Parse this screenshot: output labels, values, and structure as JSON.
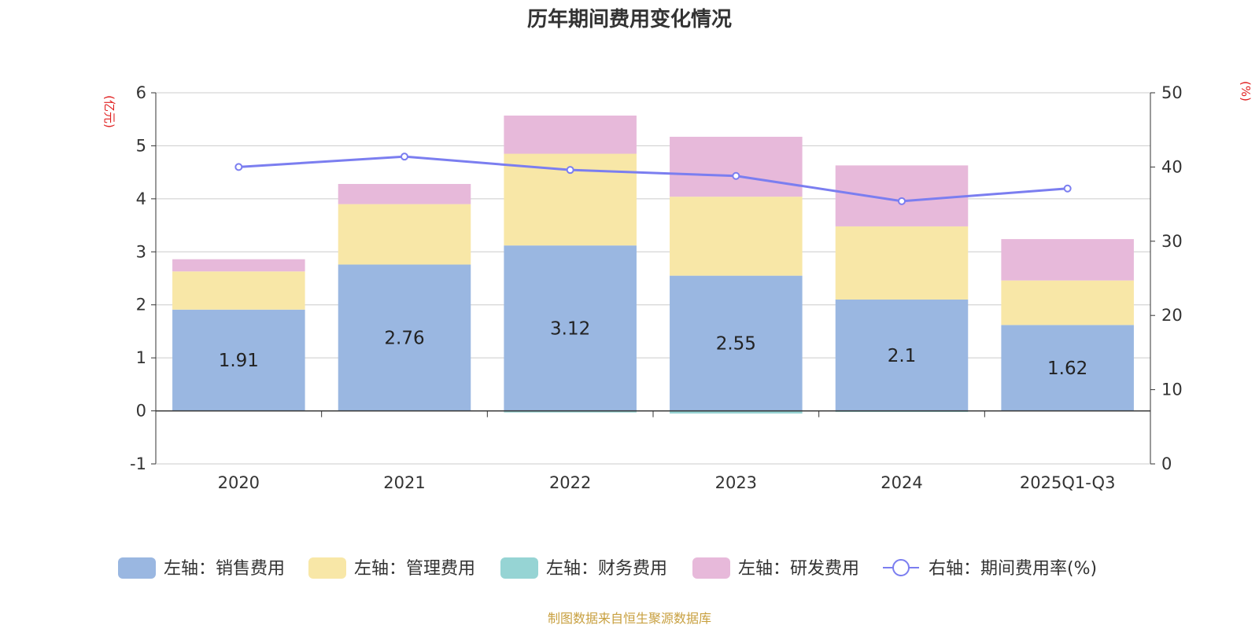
{
  "chart_data": {
    "type": "bar",
    "stacked": true,
    "title": "历年期间费用变化情况",
    "categories": [
      "2020",
      "2021",
      "2022",
      "2023",
      "2024",
      "2025Q1-Q3"
    ],
    "left_axis": {
      "unit": "(亿元)",
      "ylim": [
        -1,
        6
      ],
      "ticks": [
        "-1",
        "0",
        "1",
        "2",
        "3",
        "4",
        "5",
        "6"
      ]
    },
    "right_axis": {
      "unit": "(%)",
      "ylim": [
        0,
        50
      ],
      "ticks": [
        "0",
        "10",
        "20",
        "30",
        "40",
        "50"
      ]
    },
    "series": [
      {
        "name": "左轴：销售费用",
        "axis": "left",
        "color": "#9ab7e1",
        "values": [
          1.91,
          2.76,
          3.12,
          2.55,
          2.1,
          1.62
        ],
        "labels": [
          "1.91",
          "2.76",
          "3.12",
          "2.55",
          "2.1",
          "1.62"
        ]
      },
      {
        "name": "左轴：管理费用",
        "axis": "left",
        "color": "#f8e7a7",
        "values": [
          0.72,
          1.14,
          1.73,
          1.49,
          1.38,
          0.84
        ]
      },
      {
        "name": "左轴：财务费用",
        "axis": "left",
        "color": "#96d4d4",
        "values": [
          0.0,
          0.0,
          -0.03,
          -0.05,
          -0.02,
          0.0
        ]
      },
      {
        "name": "左轴：研发费用",
        "axis": "left",
        "color": "#e7b9da",
        "values": [
          0.23,
          0.38,
          0.72,
          1.13,
          1.15,
          0.78
        ]
      },
      {
        "name": "右轴：期间费用率(%)",
        "axis": "right",
        "type": "line",
        "color": "#7b7ef0",
        "values": [
          40.0,
          41.4,
          39.6,
          38.8,
          35.4,
          37.1
        ]
      }
    ],
    "source": "制图数据来自恒生聚源数据库",
    "colors": {
      "axis_unit": "#e02020",
      "source": "#c8a040",
      "grid": "#cccccc",
      "axis": "#333333"
    }
  }
}
